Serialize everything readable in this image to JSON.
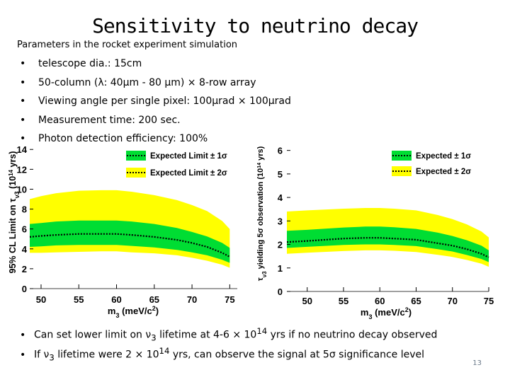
{
  "slide": {
    "title": "Sensitivity to neutrino decay",
    "subtitle": "Parameters in the rocket experiment simulation",
    "bullet": "•",
    "params": [
      "telescope dia.: 15cm",
      "50-column (λ: 40μm - 80 μm) × 8-row array",
      "Viewing angle per single pixel: 100μrad × 100μrad",
      "Measurement time: 200 sec.",
      "Photon detection efficiency: 100%"
    ],
    "conclusion1": {
      "pre": "Can set lower limit on ν",
      "sub": "3",
      "mid": " lifetime at 4-6 × 10",
      "sup": "14",
      "post": " yrs if no neutrino decay observed"
    },
    "conclusion2": {
      "pre": "If ν",
      "sub": "3",
      "mid": " lifetime were 2 × 10",
      "sup": "14",
      "post": " yrs, can observe the signal at 5σ significance level"
    },
    "page_number": "13"
  },
  "colors": {
    "band1": "#00dd33",
    "band2": "#ffff00",
    "median": "#000000"
  },
  "chart_data": [
    {
      "type": "area",
      "xlabel": "m3 (meV/c2)",
      "ylabel": "95% CL Limit on τν3 (10^14 yrs)",
      "xlim": [
        48.5,
        76
      ],
      "ylim": [
        0,
        14.8
      ],
      "xticks": [
        "50",
        "55",
        "60",
        "65",
        "70",
        "75"
      ],
      "yticks": [
        "0",
        "2",
        "4",
        "6",
        "8",
        "10",
        "12",
        "14"
      ],
      "legend": [
        "Expected Limit ± 1σ",
        "Expected Limit ± 2σ"
      ],
      "legend_position": "top-right",
      "x": [
        48.5,
        50,
        52,
        55,
        58,
        60,
        62,
        65,
        68,
        70,
        72,
        74,
        75
      ],
      "median": [
        5.2,
        5.3,
        5.4,
        5.5,
        5.5,
        5.5,
        5.4,
        5.2,
        4.9,
        4.6,
        4.2,
        3.6,
        3.2
      ],
      "sigma1_low": [
        4.2,
        4.25,
        4.35,
        4.4,
        4.4,
        4.4,
        4.3,
        4.15,
        3.9,
        3.65,
        3.35,
        2.9,
        2.6
      ],
      "sigma1_high": [
        6.5,
        6.6,
        6.75,
        6.85,
        6.85,
        6.85,
        6.75,
        6.5,
        6.1,
        5.7,
        5.25,
        4.6,
        4.1
      ],
      "sigma2_low": [
        3.6,
        3.6,
        3.65,
        3.7,
        3.75,
        3.75,
        3.65,
        3.55,
        3.35,
        3.1,
        2.8,
        2.4,
        2.1
      ],
      "sigma2_high": [
        9.0,
        9.3,
        9.6,
        9.85,
        9.9,
        9.9,
        9.75,
        9.4,
        8.9,
        8.4,
        7.8,
        6.8,
        6.0
      ]
    },
    {
      "type": "area",
      "xlabel": "m3 (meV/c2)",
      "ylabel": "τν3 yielding 5σ observation (10^14 yrs)",
      "xlim": [
        47.2,
        75
      ],
      "ylim": [
        0,
        6.2
      ],
      "xticks": [
        "50",
        "55",
        "60",
        "65",
        "70",
        "75"
      ],
      "yticks": [
        "0",
        "1",
        "2",
        "3",
        "4",
        "5",
        "6"
      ],
      "legend": [
        "Expected ± 1σ",
        "Expected ± 2σ"
      ],
      "legend_position": "top-right",
      "x": [
        47.2,
        50,
        55,
        58,
        60,
        62,
        65,
        68,
        70,
        72,
        74,
        75
      ],
      "median": [
        2.1,
        2.15,
        2.25,
        2.28,
        2.28,
        2.25,
        2.2,
        2.05,
        1.95,
        1.8,
        1.6,
        1.45
      ],
      "sigma1_low": [
        1.85,
        1.9,
        1.98,
        2.0,
        2.0,
        1.98,
        1.93,
        1.8,
        1.7,
        1.55,
        1.38,
        1.25
      ],
      "sigma1_high": [
        2.58,
        2.62,
        2.72,
        2.76,
        2.76,
        2.73,
        2.66,
        2.5,
        2.36,
        2.18,
        1.95,
        1.75
      ],
      "sigma2_low": [
        1.6,
        1.65,
        1.72,
        1.75,
        1.75,
        1.73,
        1.68,
        1.56,
        1.47,
        1.34,
        1.18,
        1.05
      ],
      "sigma2_high": [
        3.4,
        3.45,
        3.52,
        3.55,
        3.55,
        3.52,
        3.45,
        3.25,
        3.08,
        2.85,
        2.55,
        2.3
      ]
    }
  ]
}
